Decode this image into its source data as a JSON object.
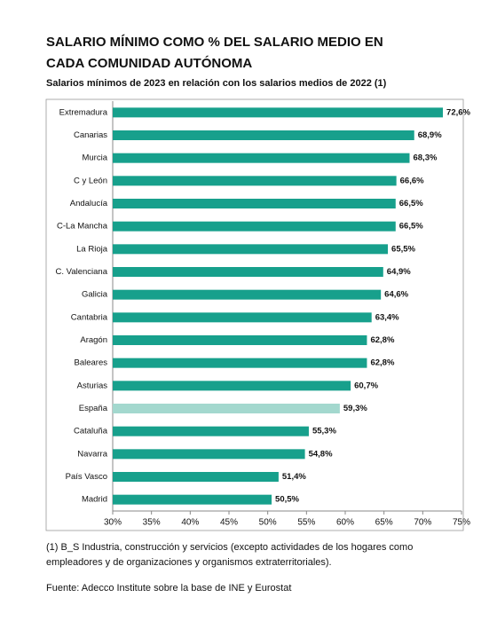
{
  "chart_data": {
    "type": "hbar",
    "title": "SALARIO MÍNIMO COMO % DEL SALARIO MEDIO EN CADA COMUNIDAD AUTÓNOMA",
    "subtitle": "Salarios mínimos de 2023 en relación con los salarios medios de 2022 (1)",
    "categories": [
      "Extremadura",
      "Canarias",
      "Murcia",
      "C y León",
      "Andalucía",
      "C-La Mancha",
      "La Rioja",
      "C. Valenciana",
      "Galicia",
      "Cantabria",
      "Aragón",
      "Baleares",
      "Asturias",
      "España",
      "Cataluña",
      "Navarra",
      "País Vasco",
      "Madrid"
    ],
    "values": [
      72.6,
      68.9,
      68.3,
      66.6,
      66.5,
      66.5,
      65.5,
      64.9,
      64.6,
      63.4,
      62.8,
      62.8,
      60.7,
      59.3,
      55.3,
      54.8,
      51.4,
      50.5
    ],
    "value_labels": [
      "72,6%",
      "68,9%",
      "68,3%",
      "66,6%",
      "66,5%",
      "66,5%",
      "65,5%",
      "64,9%",
      "64,6%",
      "63,4%",
      "62,8%",
      "62,8%",
      "60,7%",
      "59,3%",
      "55,3%",
      "54,8%",
      "51,4%",
      "50,5%"
    ],
    "colors": [
      "#17a08c",
      "#17a08c",
      "#17a08c",
      "#17a08c",
      "#17a08c",
      "#17a08c",
      "#17a08c",
      "#17a08c",
      "#17a08c",
      "#17a08c",
      "#17a08c",
      "#17a08c",
      "#17a08c",
      "#a3d8ce",
      "#17a08c",
      "#17a08c",
      "#17a08c",
      "#17a08c"
    ],
    "xlim": [
      30,
      75
    ],
    "xticks": [
      {
        "value": 30,
        "label": "30%"
      },
      {
        "value": 35,
        "label": "35%"
      },
      {
        "value": 40,
        "label": "40%"
      },
      {
        "value": 45,
        "label": "45%"
      },
      {
        "value": 50,
        "label": "50%"
      },
      {
        "value": 55,
        "label": "55%"
      },
      {
        "value": 60,
        "label": "60%"
      },
      {
        "value": 65,
        "label": "65%"
      },
      {
        "value": 70,
        "label": "70%"
      },
      {
        "value": 75,
        "label": "75%"
      }
    ],
    "footnote": "(1) B_S Industria, construcción y servicios (excepto actividades de los hogares como empleadores y de organizaciones y organismos extraterritoriales).",
    "source": "Fuente: Adecco Institute sobre la base de INE y Eurostat"
  }
}
